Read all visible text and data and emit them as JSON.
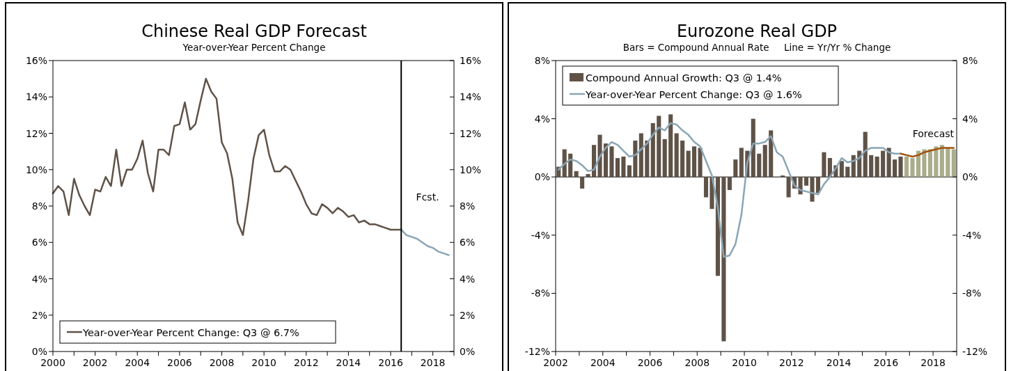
{
  "chart_data": [
    {
      "type": "line",
      "title": "Chinese Real GDP Forecast",
      "subtitle": "Year-over-Year Percent Change",
      "xlim": [
        2000,
        2019
      ],
      "xticks": [
        2000,
        {
          "value": 2001,
          "label": null
        },
        2002,
        {
          "value": 2003,
          "label": null
        },
        2004,
        {
          "value": 2005,
          "label": null
        },
        2006,
        {
          "value": 2007,
          "label": null
        },
        2008,
        {
          "value": 2009,
          "label": null
        },
        2010,
        {
          "value": 2011,
          "label": null
        },
        2012,
        {
          "value": 2013,
          "label": null
        },
        2014,
        {
          "value": 2015,
          "label": null
        },
        2016,
        {
          "value": 2017,
          "label": null
        },
        2018,
        {
          "value": 2019,
          "label": null
        }
      ],
      "ylim": [
        0,
        16
      ],
      "yticks": [
        {
          "value": 0,
          "label": "0%"
        },
        {
          "value": 2,
          "label": "2%"
        },
        {
          "value": 4,
          "label": "4%"
        },
        {
          "value": 6,
          "label": "6%"
        },
        {
          "value": 8,
          "label": "8%"
        },
        {
          "value": 10,
          "label": "10%"
        },
        {
          "value": 12,
          "label": "12%"
        },
        {
          "value": 14,
          "label": "14%"
        },
        {
          "value": 16,
          "label": "16%"
        }
      ],
      "y2lim": [
        0,
        16
      ],
      "y2ticks": [
        {
          "value": 0,
          "label": "0%"
        },
        {
          "value": 2,
          "label": "2%"
        },
        {
          "value": 4,
          "label": "4%"
        },
        {
          "value": 6,
          "label": "6%"
        },
        {
          "value": 8,
          "label": "8%"
        },
        {
          "value": 10,
          "label": "10%"
        },
        {
          "value": 12,
          "label": "12%"
        },
        {
          "value": 14,
          "label": "14%"
        },
        {
          "value": 16,
          "label": "16%"
        }
      ],
      "legend": "bottom left",
      "ref_lines": [
        {
          "axis": "x",
          "value": 2016.5,
          "label": "Fcst.",
          "color": "#000000"
        }
      ],
      "series": [
        {
          "name": "Year-over-Year Percent Change: Q3 @ 6.7%",
          "color": "#5f5247",
          "x": [
            2000,
            2000.25,
            2000.5,
            2000.75,
            2001,
            2001.25,
            2001.5,
            2001.75,
            2002,
            2002.25,
            2002.5,
            2002.75,
            2003,
            2003.25,
            2003.5,
            2003.75,
            2004,
            2004.25,
            2004.5,
            2004.75,
            2005,
            2005.25,
            2005.5,
            2005.75,
            2006,
            2006.25,
            2006.5,
            2006.75,
            2007,
            2007.25,
            2007.5,
            2007.75,
            2008,
            2008.25,
            2008.5,
            2008.75,
            2009,
            2009.25,
            2009.5,
            2009.75,
            2010,
            2010.25,
            2010.5,
            2010.75,
            2011,
            2011.25,
            2011.5,
            2011.75,
            2012,
            2012.25,
            2012.5,
            2012.75,
            2013,
            2013.25,
            2013.5,
            2013.75,
            2014,
            2014.25,
            2014.5,
            2014.75,
            2015,
            2015.25,
            2015.5,
            2015.75,
            2016,
            2016.25,
            2016.5
          ],
          "values": [
            8.7,
            9.1,
            8.8,
            7.5,
            9.5,
            8.6,
            8.0,
            7.5,
            8.9,
            8.8,
            9.6,
            9.1,
            11.1,
            9.1,
            10.0,
            10.0,
            10.6,
            11.6,
            9.8,
            8.8,
            11.1,
            11.1,
            10.8,
            12.4,
            12.5,
            13.7,
            12.2,
            12.5,
            13.8,
            15.0,
            14.3,
            13.9,
            11.5,
            10.9,
            9.5,
            7.1,
            6.4,
            8.3,
            10.6,
            11.9,
            12.2,
            10.8,
            9.9,
            9.9,
            10.2,
            10.0,
            9.4,
            8.8,
            8.1,
            7.6,
            7.5,
            8.1,
            7.9,
            7.6,
            7.9,
            7.7,
            7.4,
            7.5,
            7.1,
            7.2,
            7.0,
            7.0,
            6.9,
            6.8,
            6.7,
            6.7,
            6.7
          ]
        },
        {
          "color": "#8aa5b5",
          "x": [
            2016.5,
            2016.75,
            2017,
            2017.25,
            2017.5,
            2017.75,
            2018,
            2018.25,
            2018.5,
            2018.75
          ],
          "values": [
            6.7,
            6.4,
            6.3,
            6.2,
            6.0,
            5.8,
            5.7,
            5.5,
            5.4,
            5.3
          ]
        }
      ]
    },
    {
      "type": "bar",
      "title": "Eurozone Real GDP",
      "subtitle": "Bars = Compound Annual Rate     Line = Yr/Yr % Change",
      "xlim": [
        2002,
        2019
      ],
      "xticks": [
        2002,
        {
          "value": 2003,
          "label": null
        },
        2004,
        {
          "value": 2005,
          "label": null
        },
        2006,
        {
          "value": 2007,
          "label": null
        },
        2008,
        {
          "value": 2009,
          "label": null
        },
        2010,
        {
          "value": 2011,
          "label": null
        },
        2012,
        {
          "value": 2013,
          "label": null
        },
        2014,
        {
          "value": 2015,
          "label": null
        },
        2016,
        {
          "value": 2017,
          "label": null
        },
        2018,
        {
          "value": 2019,
          "label": null
        }
      ],
      "ylim": [
        -12,
        8
      ],
      "yticks": [
        {
          "value": -12,
          "label": "-12%"
        },
        {
          "value": -8,
          "label": "-8%"
        },
        {
          "value": -4,
          "label": "-4%"
        },
        {
          "value": 0,
          "label": "0%"
        },
        {
          "value": 4,
          "label": "4%"
        },
        {
          "value": 8,
          "label": "8%"
        }
      ],
      "y2lim": [
        -12,
        8
      ],
      "y2ticks": [
        {
          "value": -12,
          "label": "-12%"
        },
        {
          "value": -8,
          "label": "-8%"
        },
        {
          "value": -4,
          "label": "-4%"
        },
        {
          "value": 0,
          "label": "0%"
        },
        {
          "value": 4,
          "label": "4%"
        },
        {
          "value": 8,
          "label": "8%"
        }
      ],
      "legend": "top left",
      "annotations": [
        "Forecast"
      ],
      "series": [
        {
          "name": "Compound Annual Growth: Q3 @ 1.4%",
          "color": "#5f5247",
          "x": [
            2002.125,
            2002.375,
            2002.625,
            2002.875,
            2003.125,
            2003.375,
            2003.625,
            2003.875,
            2004.125,
            2004.375,
            2004.625,
            2004.875,
            2005.125,
            2005.375,
            2005.625,
            2005.875,
            2006.125,
            2006.375,
            2006.625,
            2006.875,
            2007.125,
            2007.375,
            2007.625,
            2007.875,
            2008.125,
            2008.375,
            2008.625,
            2008.875,
            2009.125,
            2009.375,
            2009.625,
            2009.875,
            2010.125,
            2010.375,
            2010.625,
            2010.875,
            2011.125,
            2011.375,
            2011.625,
            2011.875,
            2012.125,
            2012.375,
            2012.625,
            2012.875,
            2013.125,
            2013.375,
            2013.625,
            2013.875,
            2014.125,
            2014.375,
            2014.625,
            2014.875,
            2015.125,
            2015.375,
            2015.625,
            2015.875,
            2016.125,
            2016.375,
            2016.625
          ],
          "values": [
            0.7,
            1.9,
            1.6,
            0.4,
            -0.8,
            0.2,
            2.2,
            2.9,
            2.3,
            2.1,
            1.3,
            1.4,
            0.8,
            2.5,
            3.0,
            2.5,
            3.7,
            4.2,
            2.6,
            4.3,
            3.0,
            2.5,
            1.8,
            2.1,
            2.0,
            -1.4,
            -2.2,
            -6.8,
            -11.3,
            -0.9,
            1.2,
            2.0,
            1.8,
            4.0,
            1.6,
            2.2,
            3.2,
            0.0,
            0.1,
            -1.4,
            -0.8,
            -1.2,
            -0.6,
            -1.7,
            -1.1,
            1.7,
            1.3,
            0.8,
            1.1,
            0.7,
            1.5,
            1.8,
            3.1,
            1.5,
            1.4,
            1.8,
            2.0,
            1.2,
            1.4
          ]
        },
        {
          "color": "#a9ad8a",
          "x": [
            2016.875,
            2017.125,
            2017.375,
            2017.625,
            2017.875,
            2018.125,
            2018.375,
            2018.625,
            2018.875
          ],
          "values": [
            1.4,
            1.3,
            1.8,
            1.9,
            1.9,
            2.1,
            2.2,
            2.0,
            1.9
          ]
        },
        {
          "name": "Year-over-Year Percent Change: Q3 @ 1.6%",
          "type": "line",
          "color": "#8aa5b5",
          "x": [
            2002.125,
            2002.375,
            2002.625,
            2002.875,
            2003.125,
            2003.375,
            2003.625,
            2003.875,
            2004.125,
            2004.375,
            2004.625,
            2004.875,
            2005.125,
            2005.375,
            2005.625,
            2005.875,
            2006.125,
            2006.375,
            2006.625,
            2006.875,
            2007.125,
            2007.375,
            2007.625,
            2007.875,
            2008.125,
            2008.375,
            2008.625,
            2008.875,
            2009.125,
            2009.375,
            2009.625,
            2009.875,
            2010.125,
            2010.375,
            2010.625,
            2010.875,
            2011.125,
            2011.375,
            2011.625,
            2011.875,
            2012.125,
            2012.375,
            2012.625,
            2012.875,
            2013.125,
            2013.375,
            2013.625,
            2013.875,
            2014.125,
            2014.375,
            2014.625,
            2014.875,
            2015.125,
            2015.375,
            2015.625,
            2015.875,
            2016.125,
            2016.375,
            2016.625
          ],
          "values": [
            0.5,
            0.9,
            1.2,
            1.1,
            0.8,
            0.4,
            0.5,
            1.4,
            2.0,
            2.4,
            2.2,
            1.8,
            1.4,
            1.5,
            1.9,
            2.3,
            2.9,
            3.4,
            3.2,
            3.7,
            3.6,
            3.2,
            2.9,
            2.4,
            2.1,
            1.1,
            0.1,
            -2.1,
            -5.5,
            -5.4,
            -4.6,
            -2.6,
            1.0,
            2.3,
            2.3,
            2.4,
            2.8,
            1.7,
            1.4,
            0.4,
            -0.6,
            -0.9,
            -1.0,
            -1.1,
            -1.2,
            -0.5,
            0.0,
            0.6,
            1.3,
            1.0,
            1.1,
            1.3,
            1.8,
            2.0,
            2.0,
            2.0,
            1.7,
            1.6,
            1.6
          ]
        },
        {
          "type": "line",
          "color": "#a0520f",
          "x": [
            2016.625,
            2016.875,
            2017.125,
            2017.375,
            2017.625,
            2017.875,
            2018.125,
            2018.375,
            2018.625,
            2018.875
          ],
          "values": [
            1.6,
            1.5,
            1.4,
            1.5,
            1.7,
            1.8,
            1.9,
            2.0,
            2.0,
            2.0
          ]
        }
      ]
    }
  ]
}
